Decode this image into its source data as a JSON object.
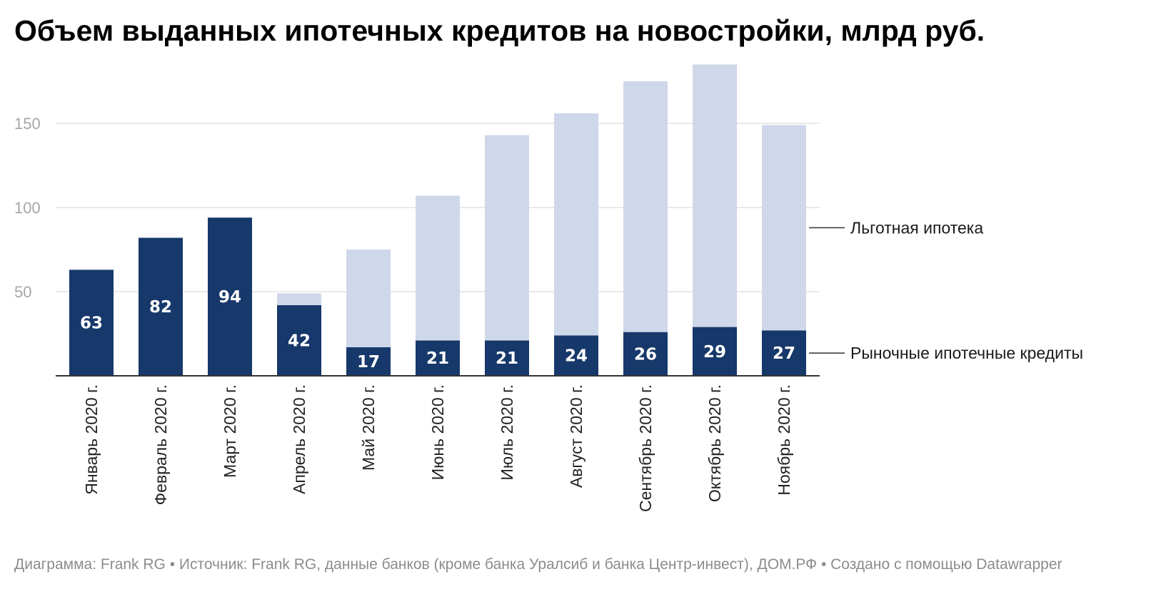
{
  "title": "Объем выданных ипотечных кредитов на новостройки, млрд руб.",
  "footer": "Диаграмма: Frank RG • Источник: Frank RG, данные банков (кроме банка Уралсиб и банка Центр-инвест), ДОМ.РФ • Создано с помощью Datawrapper",
  "colors": {
    "market": "#17386a",
    "preferential": "#cfd8ea",
    "grid": "#e2e2e2",
    "axis": "#333333"
  },
  "chart_data": {
    "type": "bar",
    "stacked": true,
    "categories": [
      "Январь 2020 г.",
      "Февраль 2020 г.",
      "Март 2020 г.",
      "Апрель 2020 г.",
      "Май 2020 г.",
      "Июнь 2020 г.",
      "Июль 2020 г.",
      "Август 2020 г.",
      "Сентябрь 2020 г.",
      "Октябрь 2020 г.",
      "Ноябрь 2020 г."
    ],
    "series": [
      {
        "name": "Рыночные ипотечные кредиты",
        "values": [
          63,
          82,
          94,
          42,
          17,
          21,
          21,
          24,
          26,
          29,
          27
        ],
        "labels": [
          "63",
          "82",
          "94",
          "42",
          "17",
          "21",
          "21",
          "24",
          "26",
          "29",
          "27"
        ]
      },
      {
        "name": "Льготная ипотека",
        "values": [
          0,
          0,
          0,
          7,
          58,
          86,
          122,
          132,
          149,
          156,
          122
        ]
      }
    ],
    "yticks": [
      50,
      100,
      150
    ],
    "ytick_labels": [
      "50",
      "100",
      "150"
    ],
    "ylim": [
      0,
      185
    ],
    "grid": true,
    "legend": "direct labels at right"
  }
}
